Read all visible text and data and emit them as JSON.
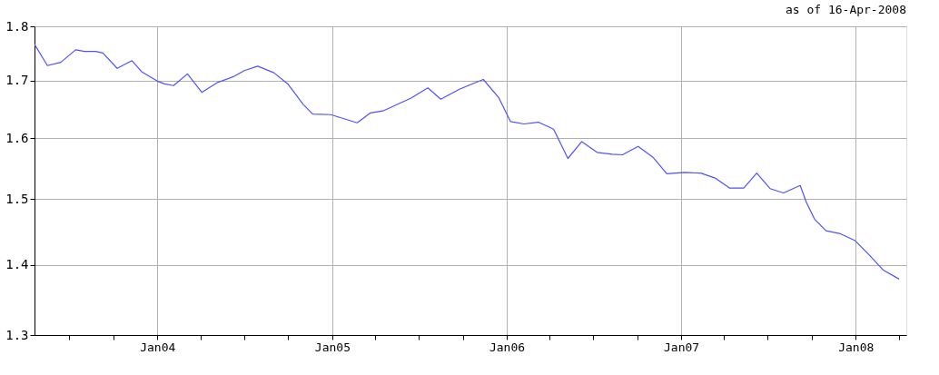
{
  "chart_data": {
    "type": "line",
    "annotations": [
      "as of 16-Apr-2008"
    ],
    "x": [
      "2003-04-19",
      "2003-05-16",
      "2003-06-13",
      "2003-07-14",
      "2003-08-02",
      "2003-08-25",
      "2003-09-09",
      "2003-10-09",
      "2003-11-09",
      "2003-11-29",
      "2004-01-01",
      "2004-01-16",
      "2004-02-04",
      "2004-03-04",
      "2004-04-03",
      "2004-05-07",
      "2004-06-08",
      "2004-07-01",
      "2004-07-29",
      "2004-09-01",
      "2004-09-30",
      "2004-11-01",
      "2004-11-21",
      "2004-12-29",
      "2005-02-22",
      "2005-03-22",
      "2005-04-19",
      "2005-06-15",
      "2005-07-20",
      "2005-08-16",
      "2005-09-25",
      "2005-11-13",
      "2005-12-15",
      "2006-01-09",
      "2006-02-06",
      "2006-03-08",
      "2006-04-09",
      "2006-05-09",
      "2006-06-07",
      "2006-07-09",
      "2006-08-10",
      "2006-08-31",
      "2006-10-03",
      "2006-11-03",
      "2006-12-02",
      "2007-01-08",
      "2007-02-11",
      "2007-03-13",
      "2007-04-12",
      "2007-05-12",
      "2007-06-08",
      "2007-07-06",
      "2007-08-03",
      "2007-09-07",
      "2007-09-20",
      "2007-10-07",
      "2007-10-31",
      "2007-11-28",
      "2007-12-31",
      "2008-01-30",
      "2008-02-28",
      "2008-04-01"
    ],
    "series": [
      {
        "color": "#5050ff",
        "values": [
          1.766,
          1.727,
          1.733,
          1.756,
          1.753,
          1.753,
          1.75,
          1.722,
          1.736,
          1.716,
          1.699,
          1.694,
          1.691,
          1.712,
          1.679,
          1.697,
          1.707,
          1.718,
          1.726,
          1.714,
          1.694,
          1.658,
          1.641,
          1.64,
          1.626,
          1.643,
          1.647,
          1.669,
          1.687,
          1.667,
          1.685,
          1.702,
          1.67,
          1.628,
          1.624,
          1.627,
          1.615,
          1.566,
          1.594,
          1.576,
          1.573,
          1.572,
          1.586,
          1.568,
          1.541,
          1.543,
          1.542,
          1.534,
          1.518,
          1.518,
          1.542,
          1.517,
          1.51,
          1.522,
          1.495,
          1.469,
          1.451,
          1.447,
          1.436,
          1.414,
          1.392,
          1.379
        ]
      }
    ],
    "xlim": [
      "2003-04-19",
      "2008-04-16"
    ],
    "xticks": [
      {
        "value": "2003-07-01",
        "label": null
      },
      {
        "value": "2003-10-01",
        "label": null
      },
      {
        "value": "2004-01-01",
        "label": "Jan04"
      },
      {
        "value": "2004-04-01",
        "label": null
      },
      {
        "value": "2004-07-01",
        "label": null
      },
      {
        "value": "2004-10-01",
        "label": null
      },
      {
        "value": "2005-01-01",
        "label": "Jan05"
      },
      {
        "value": "2005-04-01",
        "label": null
      },
      {
        "value": "2005-07-01",
        "label": null
      },
      {
        "value": "2005-10-01",
        "label": null
      },
      {
        "value": "2006-01-01",
        "label": "Jan06"
      },
      {
        "value": "2006-04-01",
        "label": null
      },
      {
        "value": "2006-07-01",
        "label": null
      },
      {
        "value": "2006-10-01",
        "label": null
      },
      {
        "value": "2007-01-01",
        "label": "Jan07"
      },
      {
        "value": "2007-04-01",
        "label": null
      },
      {
        "value": "2007-07-01",
        "label": null
      },
      {
        "value": "2007-10-01",
        "label": null
      },
      {
        "value": "2008-01-01",
        "label": "Jan08"
      },
      {
        "value": "2008-04-01",
        "label": null
      }
    ],
    "ylim": [
      1.3,
      1.8
    ],
    "yticks": [
      1.3,
      1.4,
      1.5,
      1.6,
      1.7,
      1.8
    ],
    "log": true,
    "grid": true,
    "marker": "none",
    "line_style": "solid"
  }
}
